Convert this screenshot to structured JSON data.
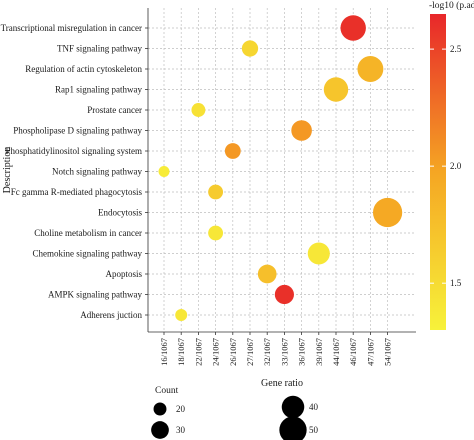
{
  "chart_data": {
    "type": "scatter",
    "title": "",
    "xlabel": "Gene ratio",
    "ylabel": "Description",
    "x_categories": [
      "16/1067",
      "18/1067",
      "22/1067",
      "24/1067",
      "26/1067",
      "27/1067",
      "32/1067",
      "33/1067",
      "36/1067",
      "39/1067",
      "44/1067",
      "46/1067",
      "47/1067",
      "54/1067"
    ],
    "y_categories": [
      "Transcriptional misregulation in cancer",
      "TNF signaling pathway",
      "Regulation of actin cytoskeleton",
      "Rap1 signaling pathway",
      "Prostate cancer",
      "Phospholipase D signaling pathway",
      "Phosphatidylinositol signaling system",
      "Notch signaling pathway",
      "Fc gamma R-mediated phagocytosis",
      "Endocytosis",
      "Choline metabolism in cancer",
      "Chemokine signaling pathway",
      "Apoptosis",
      "AMPK signaling pathway",
      "Adherens juction"
    ],
    "points": [
      {
        "description": "Transcriptional misregulation in cancer",
        "gene_ratio": "46/1067",
        "count": 46,
        "neg_log10_padj": 2.6
      },
      {
        "description": "TNF signaling pathway",
        "gene_ratio": "27/1067",
        "count": 27,
        "neg_log10_padj": 1.55
      },
      {
        "description": "Regulation of actin cytoskeleton",
        "gene_ratio": "47/1067",
        "count": 47,
        "neg_log10_padj": 1.85
      },
      {
        "description": "Rap1 signaling pathway",
        "gene_ratio": "44/1067",
        "count": 44,
        "neg_log10_padj": 1.7
      },
      {
        "description": "Prostate cancer",
        "gene_ratio": "22/1067",
        "count": 22,
        "neg_log10_padj": 1.45
      },
      {
        "description": "Phospholipase D signaling pathway",
        "gene_ratio": "36/1067",
        "count": 36,
        "neg_log10_padj": 2.05
      },
      {
        "description": "Phosphatidylinositol signaling system",
        "gene_ratio": "26/1067",
        "count": 26,
        "neg_log10_padj": 2.05
      },
      {
        "description": "Notch signaling pathway",
        "gene_ratio": "16/1067",
        "count": 16,
        "neg_log10_padj": 1.35
      },
      {
        "description": "Fc gamma R-mediated phagocytosis",
        "gene_ratio": "24/1067",
        "count": 24,
        "neg_log10_padj": 1.65
      },
      {
        "description": "Endocytosis",
        "gene_ratio": "54/1067",
        "count": 54,
        "neg_log10_padj": 1.95
      },
      {
        "description": "Choline metabolism in cancer",
        "gene_ratio": "24/1067",
        "count": 24,
        "neg_log10_padj": 1.4
      },
      {
        "description": "Chemokine signaling pathway",
        "gene_ratio": "39/1067",
        "count": 39,
        "neg_log10_padj": 1.4
      },
      {
        "description": "Apoptosis",
        "gene_ratio": "32/1067",
        "count": 32,
        "neg_log10_padj": 1.75
      },
      {
        "description": "AMPK signaling pathway",
        "gene_ratio": "33/1067",
        "count": 33,
        "neg_log10_padj": 2.6
      },
      {
        "description": "Adherens juction",
        "gene_ratio": "18/1067",
        "count": 18,
        "neg_log10_padj": 1.4
      }
    ],
    "color_legend": {
      "title": "-log10 (p.adj)",
      "ticks": [
        1.5,
        2.0,
        2.5
      ],
      "tick_labels": [
        "1.5",
        "2.0",
        "2.5"
      ],
      "range": [
        1.3,
        2.65
      ],
      "colors": [
        "#f7f23a",
        "#f5a623",
        "#e8272a"
      ]
    },
    "size_legend": {
      "title": "Count",
      "values": [
        20,
        30,
        40,
        50
      ],
      "labels": [
        "20",
        "30",
        "40",
        "50"
      ]
    },
    "grid": true
  }
}
